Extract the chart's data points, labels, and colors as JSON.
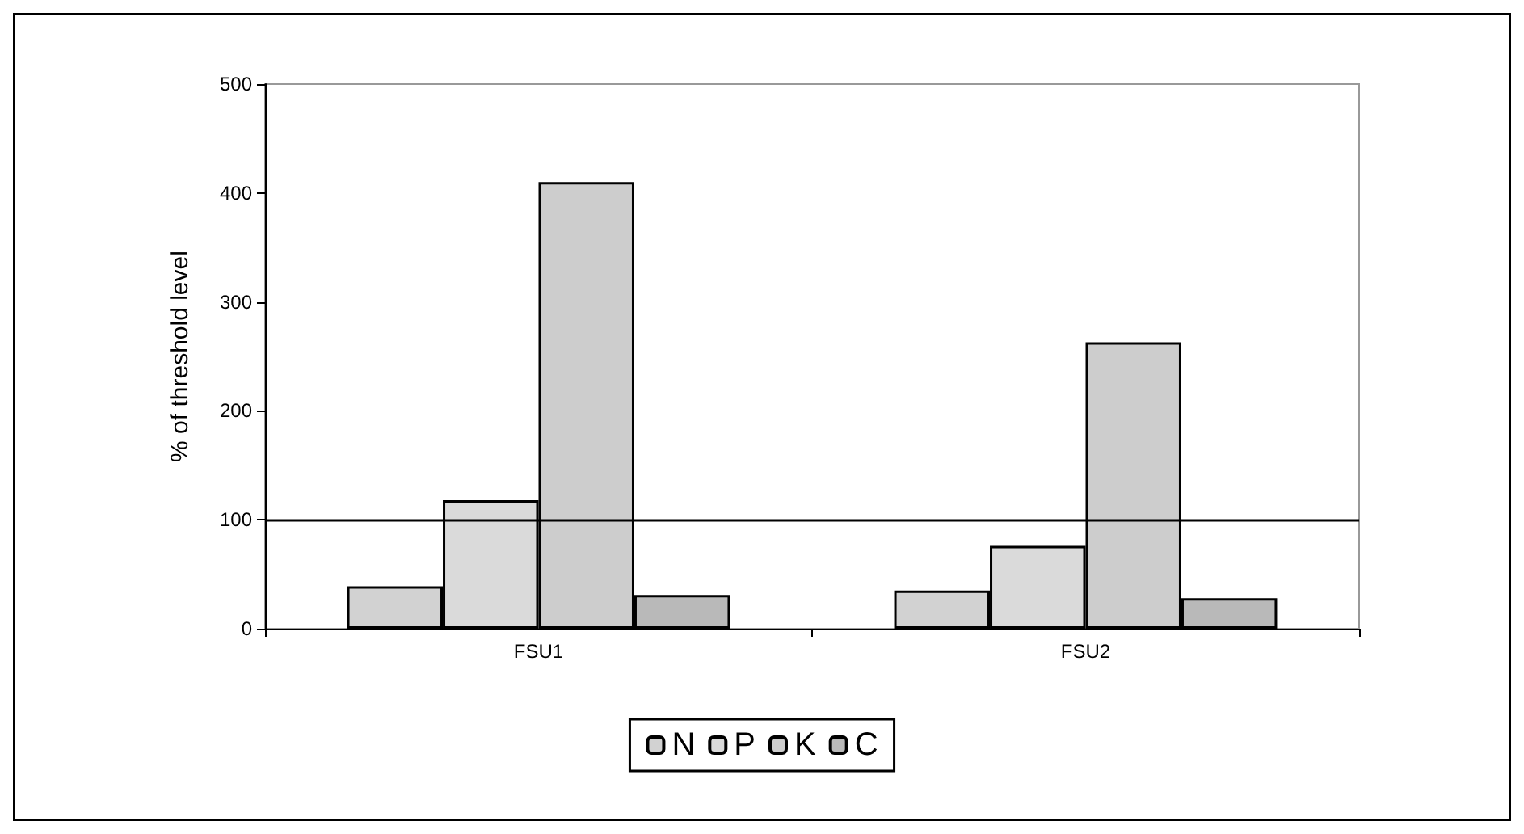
{
  "chart_data": {
    "type": "bar",
    "ylabel": "% of threshold level",
    "categories": [
      "FSU1",
      "FSU2"
    ],
    "series": [
      {
        "name": "N",
        "color": "#d2d2d2",
        "values": [
          39,
          35
        ]
      },
      {
        "name": "P",
        "color": "#dadada",
        "values": [
          118,
          76
        ]
      },
      {
        "name": "K",
        "color": "#cdcdcd",
        "values": [
          410,
          263
        ]
      },
      {
        "name": "C",
        "color": "#b9b9b9",
        "values": [
          31,
          28
        ]
      }
    ],
    "ylim": [
      0,
      500
    ],
    "yticks": [
      0,
      100,
      200,
      300,
      400,
      500
    ],
    "ref_lines": [
      {
        "axis": "y",
        "value": 100,
        "color": "#000000"
      }
    ],
    "grid": false,
    "legend": "bottom"
  }
}
